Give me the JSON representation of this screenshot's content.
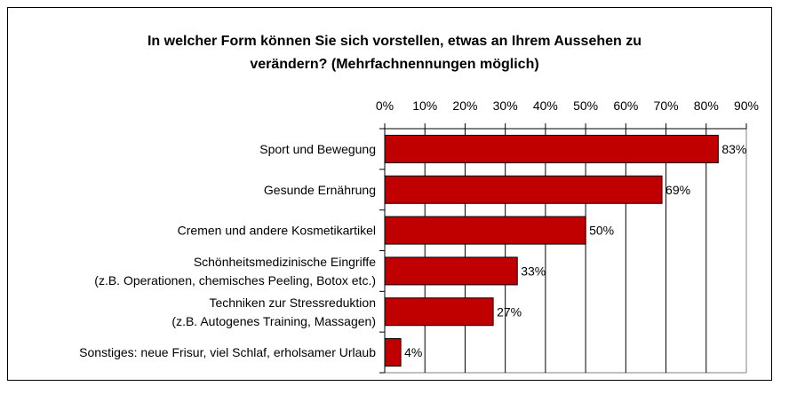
{
  "chart_data": {
    "type": "bar",
    "orientation": "horizontal",
    "title_lines": [
      "In welcher Form können Sie sich vorstellen, etwas an Ihrem Aussehen zu",
      "verändern? (Mehrfachnennungen möglich)"
    ],
    "categories": [
      [
        "Sport und Bewegung"
      ],
      [
        "Gesunde Ernährung"
      ],
      [
        "Cremen und andere Kosmetikartikel"
      ],
      [
        "Schönheitsmedizinische Eingriffe",
        "(z.B. Operationen, chemisches Peeling, Botox etc.)"
      ],
      [
        "Techniken zur Stressreduktion",
        "(z.B. Autogenes Training, Massagen)"
      ],
      [
        "Sonstiges: neue Frisur, viel Schlaf, erholsamer Urlaub"
      ]
    ],
    "values": [
      83,
      69,
      50,
      33,
      27,
      4
    ],
    "data_labels": [
      "83%",
      "69%",
      "50%",
      "33%",
      "27%",
      "4%"
    ],
    "xlim": [
      0,
      90
    ],
    "xticks": [
      "0%",
      "10%",
      "20%",
      "30%",
      "40%",
      "50%",
      "60%",
      "70%",
      "80%",
      "90%"
    ],
    "axis_position": "top",
    "grid": true,
    "bar_color": "#c00000"
  }
}
